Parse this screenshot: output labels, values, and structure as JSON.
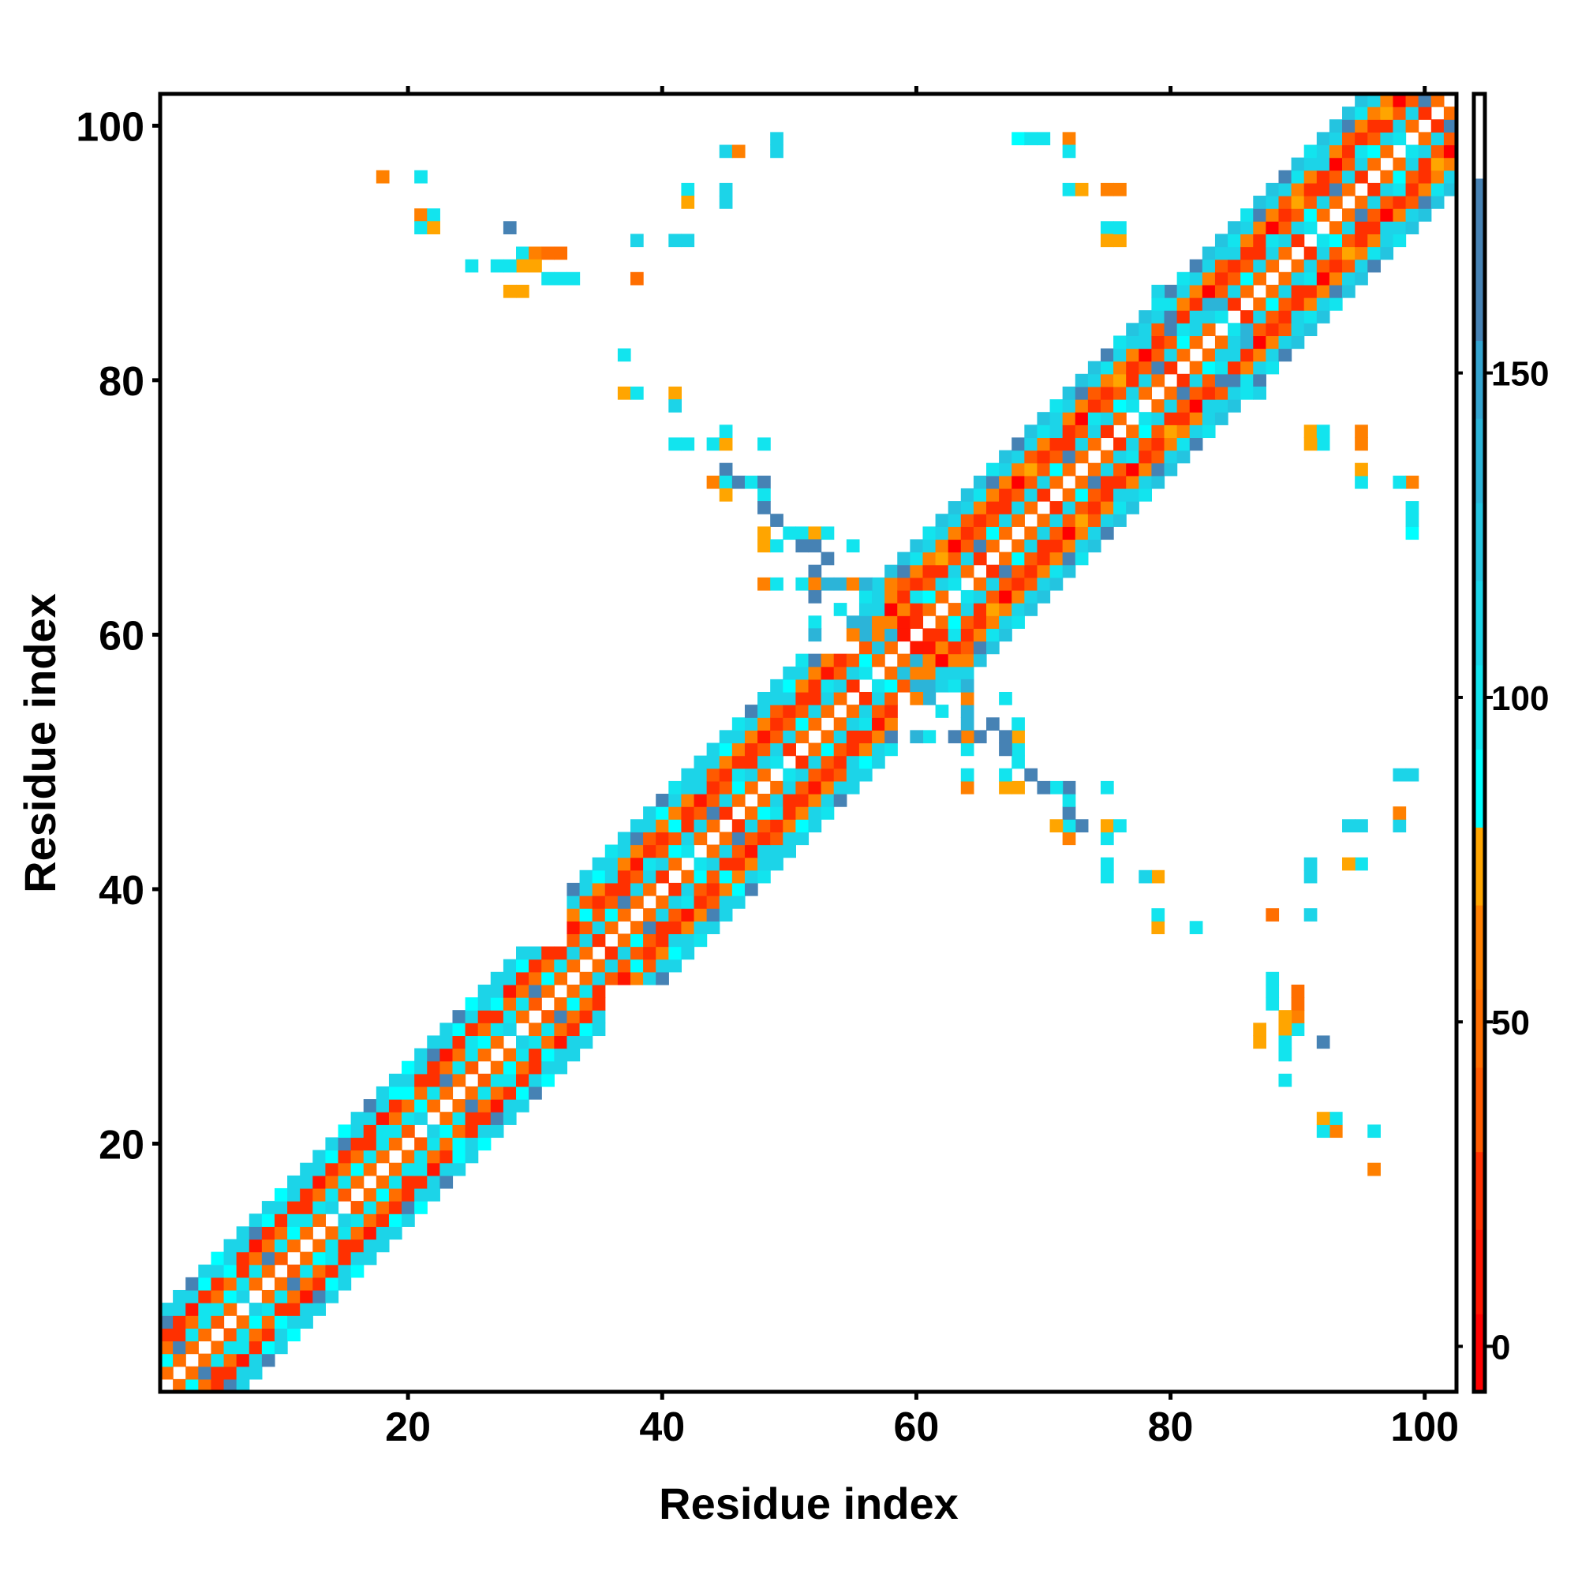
{
  "chart_data": {
    "type": "heatmap",
    "title": "",
    "xlabel": "Residue index",
    "ylabel": "Residue index",
    "xlim": [
      0.5,
      102.5
    ],
    "ylim": [
      0.5,
      102.5
    ],
    "xticks": [
      20,
      40,
      60,
      80,
      100
    ],
    "yticks": [
      20,
      40,
      60,
      80,
      100
    ],
    "symmetric": true,
    "colorbar": {
      "range": [
        -7,
        193
      ],
      "ticks": [
        0,
        50,
        100,
        150
      ],
      "bins": [
        {
          "from": -7,
          "to": 5,
          "color": "#ff0000"
        },
        {
          "from": 5,
          "to": 18,
          "color": "#ff1500"
        },
        {
          "from": 18,
          "to": 30,
          "color": "#ff3000"
        },
        {
          "from": 30,
          "to": 43,
          "color": "#ff5a00"
        },
        {
          "from": 43,
          "to": 55,
          "color": "#ff6e00"
        },
        {
          "from": 55,
          "to": 68,
          "color": "#ff8000"
        },
        {
          "from": 68,
          "to": 80,
          "color": "#ffa500"
        },
        {
          "from": 80,
          "to": 92,
          "color": "#00ffff"
        },
        {
          "from": 92,
          "to": 105,
          "color": "#12e4ee"
        },
        {
          "from": 105,
          "to": 118,
          "color": "#1cd4e8"
        },
        {
          "from": 118,
          "to": 130,
          "color": "#24c4e0"
        },
        {
          "from": 130,
          "to": 143,
          "color": "#2cb4d8"
        },
        {
          "from": 143,
          "to": 155,
          "color": "#34a4d0"
        },
        {
          "from": 155,
          "to": 180,
          "color": "#4682b4"
        },
        {
          "from": 180,
          "to": 193,
          "color": "#ffffff"
        }
      ]
    },
    "band_segments": [
      {
        "from": 1,
        "to": 33,
        "offset_values": [
          50,
          100,
          45,
          25,
          108,
          110
        ]
      },
      {
        "from": 33,
        "to": 56,
        "offset_values": [
          48,
          105,
          40,
          28,
          60,
          108,
          112
        ]
      },
      {
        "from": 56,
        "to": 102,
        "offset_values": [
          45,
          110,
          40,
          20,
          60,
          112,
          120
        ]
      }
    ],
    "contacts": [
      [
        18,
        96,
        55
      ],
      [
        21,
        96,
        95
      ],
      [
        21,
        93,
        55
      ],
      [
        22,
        93,
        95
      ],
      [
        21,
        92,
        100
      ],
      [
        22,
        92,
        70
      ],
      [
        28,
        92,
        165
      ],
      [
        29,
        90,
        100
      ],
      [
        30,
        90,
        55
      ],
      [
        31,
        90,
        45
      ],
      [
        32,
        90,
        45
      ],
      [
        29,
        89,
        75
      ],
      [
        30,
        89,
        70
      ],
      [
        28,
        89,
        95
      ],
      [
        25,
        89,
        95
      ],
      [
        27,
        89,
        100
      ],
      [
        31,
        88,
        100
      ],
      [
        32,
        88,
        100
      ],
      [
        33,
        88,
        100
      ],
      [
        28,
        87,
        72
      ],
      [
        29,
        87,
        72
      ],
      [
        38,
        88,
        45
      ],
      [
        38,
        91,
        110
      ],
      [
        41,
        91,
        105
      ],
      [
        42,
        91,
        105
      ],
      [
        42,
        95,
        100
      ],
      [
        42,
        94,
        70
      ],
      [
        45,
        95,
        105
      ],
      [
        45,
        94,
        105
      ],
      [
        45,
        98,
        105
      ],
      [
        46,
        98,
        65
      ],
      [
        49,
        99,
        105
      ],
      [
        49,
        98,
        105
      ],
      [
        37,
        82,
        100
      ],
      [
        37,
        79,
        70
      ],
      [
        38,
        79,
        100
      ],
      [
        41,
        79,
        70
      ],
      [
        41,
        78,
        105
      ],
      [
        41,
        75,
        100
      ],
      [
        42,
        75,
        100
      ],
      [
        44,
        75,
        100
      ],
      [
        45,
        75,
        70
      ],
      [
        45,
        76,
        100
      ],
      [
        48,
        75,
        95
      ],
      [
        45,
        73,
        160
      ],
      [
        44,
        72,
        55
      ],
      [
        45,
        72,
        100
      ],
      [
        46,
        72,
        160
      ],
      [
        47,
        72,
        100
      ],
      [
        48,
        72,
        160
      ],
      [
        45,
        71,
        70
      ],
      [
        48,
        71,
        100
      ],
      [
        48,
        70,
        160
      ],
      [
        49,
        69,
        160
      ],
      [
        48,
        68,
        70
      ],
      [
        50,
        68,
        100
      ],
      [
        48,
        67,
        70
      ],
      [
        49,
        67,
        100
      ],
      [
        51,
        68,
        100
      ],
      [
        52,
        68,
        70
      ],
      [
        53,
        68,
        100
      ],
      [
        51,
        67,
        160
      ],
      [
        52,
        67,
        160
      ],
      [
        53,
        66,
        160
      ],
      [
        55,
        67,
        100
      ],
      [
        52,
        65,
        160
      ],
      [
        48,
        64,
        55
      ],
      [
        49,
        64,
        100
      ],
      [
        51,
        64,
        100
      ],
      [
        52,
        64,
        55
      ],
      [
        53,
        64,
        130
      ],
      [
        54,
        64,
        130
      ],
      [
        55,
        64,
        60
      ],
      [
        56,
        64,
        130
      ],
      [
        57,
        64,
        110
      ],
      [
        58,
        64,
        60
      ],
      [
        52,
        63,
        160
      ],
      [
        52,
        61,
        100
      ],
      [
        52,
        60,
        130
      ],
      [
        54,
        62,
        100
      ],
      [
        55,
        61,
        140
      ],
      [
        56,
        61,
        140
      ],
      [
        55,
        60,
        60
      ],
      [
        56,
        60,
        140
      ],
      [
        57,
        61,
        60
      ],
      [
        58,
        61,
        55
      ],
      [
        59,
        61,
        10
      ],
      [
        60,
        62,
        25
      ],
      [
        59,
        62,
        55
      ],
      [
        57,
        60,
        55
      ],
      [
        58,
        60,
        130
      ],
      [
        57,
        59,
        120
      ],
      [
        59,
        60,
        5
      ],
      [
        68,
        99,
        90
      ],
      [
        69,
        99,
        90
      ],
      [
        72,
        99,
        55
      ],
      [
        72,
        98,
        105
      ],
      [
        72,
        95,
        90
      ],
      [
        73,
        95,
        70
      ],
      [
        75,
        95,
        55
      ],
      [
        75,
        92,
        100
      ],
      [
        75,
        91,
        70
      ],
      [
        91,
        76,
        70
      ],
      [
        92,
        76,
        100
      ],
      [
        95,
        76,
        55
      ],
      [
        95,
        73,
        70
      ],
      [
        95,
        72,
        95
      ],
      [
        98,
        72,
        100
      ],
      [
        99,
        72,
        55
      ],
      [
        99,
        70,
        95
      ],
      [
        99,
        69,
        95
      ],
      [
        79,
        87,
        110
      ],
      [
        80,
        87,
        160
      ],
      [
        80,
        85,
        140
      ],
      [
        84,
        80,
        160
      ],
      [
        85,
        80,
        160
      ],
      [
        86,
        79,
        100
      ],
      [
        82,
        85,
        110
      ],
      [
        83,
        86,
        130
      ],
      [
        84,
        86,
        130
      ]
    ]
  }
}
